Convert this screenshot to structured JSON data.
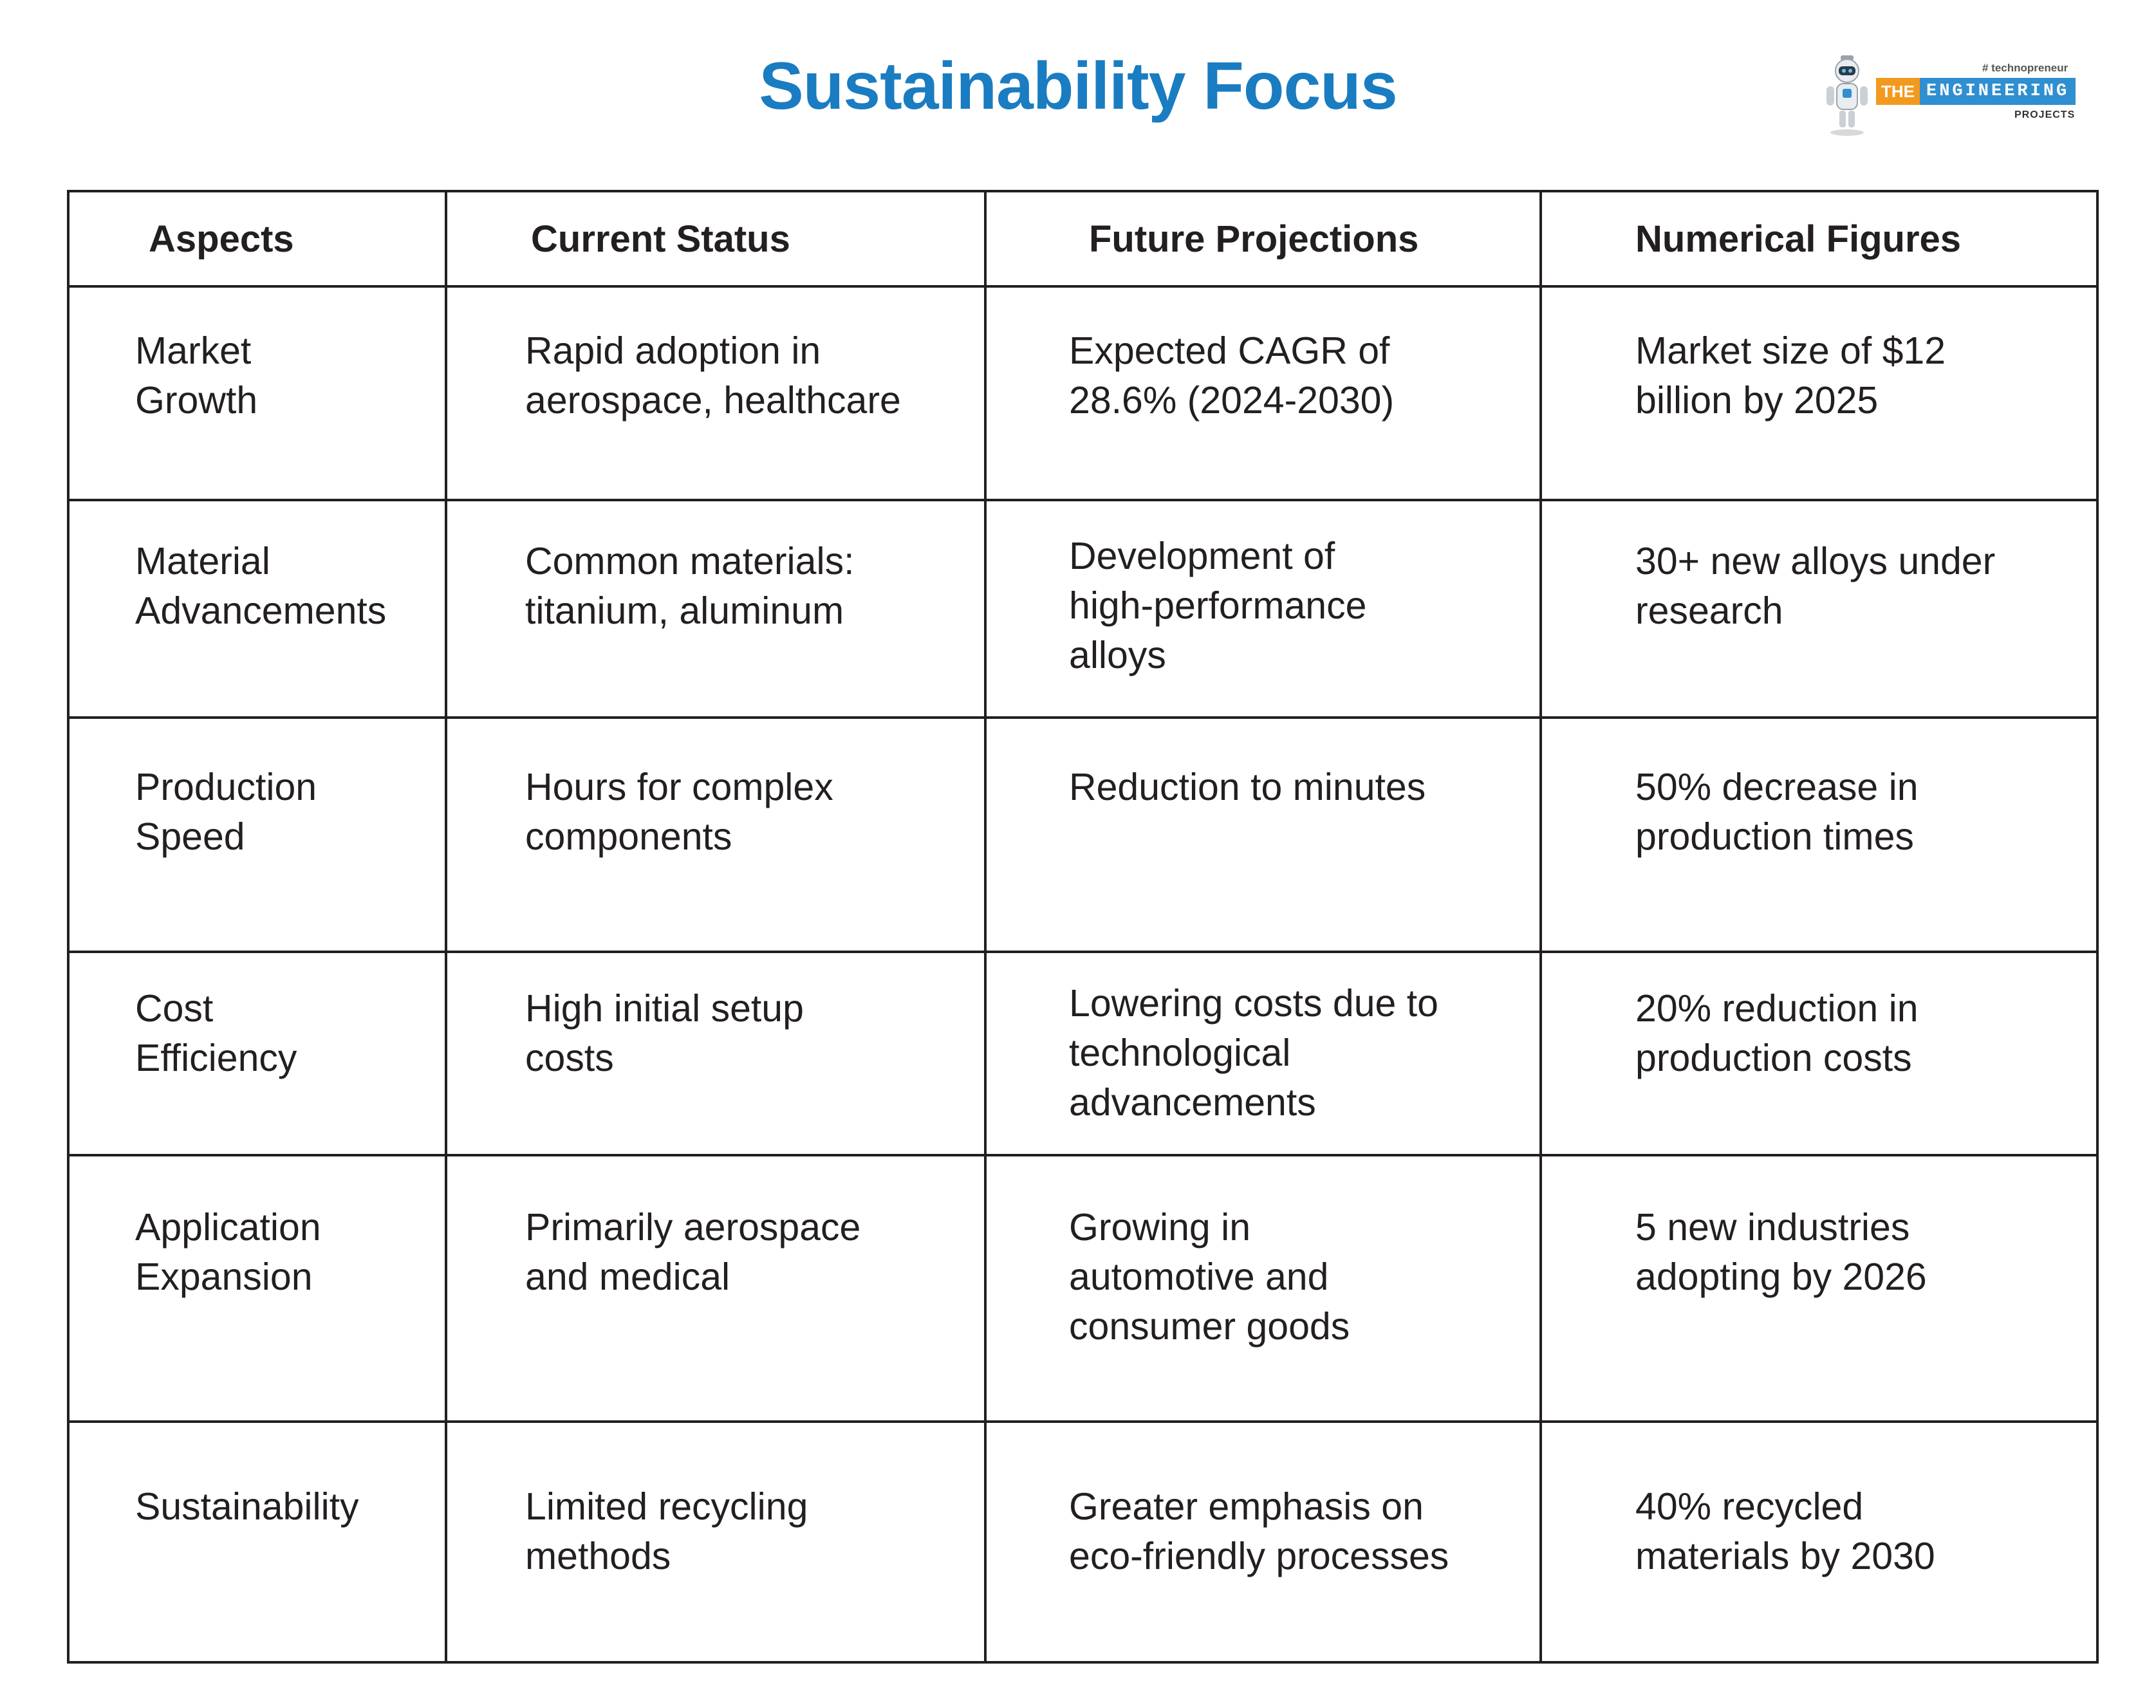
{
  "title": "Sustainability Focus",
  "logo": {
    "tag": "# technopreneur",
    "the": "THE",
    "engineering": "ENGINEERING",
    "projects": "PROJECTS"
  },
  "table": {
    "headers": [
      "Aspects",
      "Current Status",
      "Future Projections",
      "Numerical Figures"
    ],
    "rows": [
      [
        "Market\nGrowth",
        "Rapid adoption in\naerospace, healthcare",
        "Expected CAGR of\n28.6% (2024-2030)",
        "Market size of $12\nbillion by 2025"
      ],
      [
        "Material\nAdvancements",
        "Common materials:\ntitanium, aluminum",
        "Development of\nhigh-performance\nalloys",
        "30+ new alloys under\nresearch"
      ],
      [
        "Production\nSpeed",
        "Hours for complex\ncomponents",
        "Reduction to minutes",
        "50% decrease in\nproduction times"
      ],
      [
        "Cost\nEfficiency",
        "High initial setup\ncosts",
        "Lowering costs due to\ntechnological\nadvancements",
        "20% reduction in\nproduction costs"
      ],
      [
        "Application\nExpansion",
        "Primarily aerospace\nand medical",
        "Growing in\nautomotive and\nconsumer goods",
        "5 new industries\nadopting by 2026"
      ],
      [
        "Sustainability",
        "Limited recycling\nmethods",
        "Greater emphasis on\neco-friendly processes",
        "40% recycled\nmaterials by 2030"
      ]
    ]
  }
}
